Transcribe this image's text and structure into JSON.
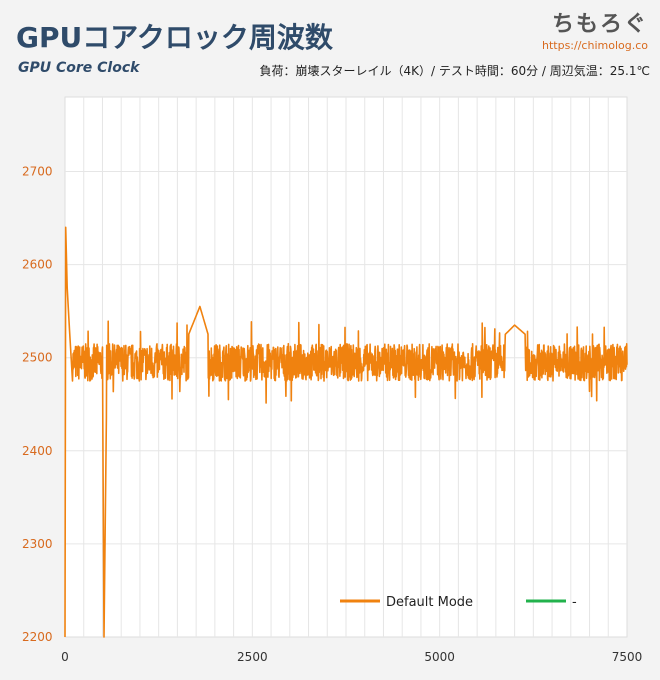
{
  "header": {
    "title": "GPUコアクロック周波数",
    "subtitle": "GPU Core Clock",
    "conditions": "負荷：崩壊スターレイル（4K）/ テスト時間：60分 / 周辺気温：25.1℃",
    "brand_logo": "ちもろぐ",
    "brand_url": "https://chimolog.co"
  },
  "colors": {
    "series_default": "#f0820f",
    "series_other": "#22b24c",
    "axis_tick": "#d86a1e",
    "title": "#2f4b6a"
  },
  "chart_data": {
    "type": "line",
    "title": "GPUコアクロック周波数",
    "xlabel": "",
    "ylabel": "",
    "xlim": [
      0,
      7500
    ],
    "ylim": [
      2200,
      2780
    ],
    "x_ticks": [
      0,
      2500,
      5000,
      7500
    ],
    "x_tick_labels": [
      "0",
      "2500",
      "5000",
      "7500"
    ],
    "y_ticks": [
      2200,
      2300,
      2400,
      2500,
      2600,
      2700
    ],
    "y_tick_labels": [
      "2200",
      "2300",
      "2400",
      "2500",
      "2600",
      "2700"
    ],
    "grid": true,
    "legend_position": "bottom-right",
    "series": [
      {
        "name": "Default Mode",
        "color": "#f0820f",
        "baseline": 2495,
        "noise_band": [
          2475,
          2515
        ],
        "points": [
          [
            0,
            2200
          ],
          [
            10,
            2640
          ],
          [
            30,
            2575
          ],
          [
            60,
            2530
          ],
          [
            100,
            2500
          ],
          [
            200,
            2495
          ],
          [
            400,
            2500
          ],
          [
            500,
            2490
          ],
          [
            520,
            2200
          ],
          [
            560,
            2495
          ],
          [
            1000,
            2500
          ],
          [
            1500,
            2495
          ],
          [
            1800,
            2555
          ],
          [
            2000,
            2500
          ],
          [
            2500,
            2495
          ],
          [
            3000,
            2500
          ],
          [
            3500,
            2495
          ],
          [
            4000,
            2500
          ],
          [
            4500,
            2495
          ],
          [
            5000,
            2500
          ],
          [
            5500,
            2495
          ],
          [
            6000,
            2535
          ],
          [
            6500,
            2500
          ],
          [
            7000,
            2495
          ],
          [
            7500,
            2495
          ]
        ]
      },
      {
        "name": "-",
        "color": "#22b24c",
        "points": []
      }
    ]
  }
}
